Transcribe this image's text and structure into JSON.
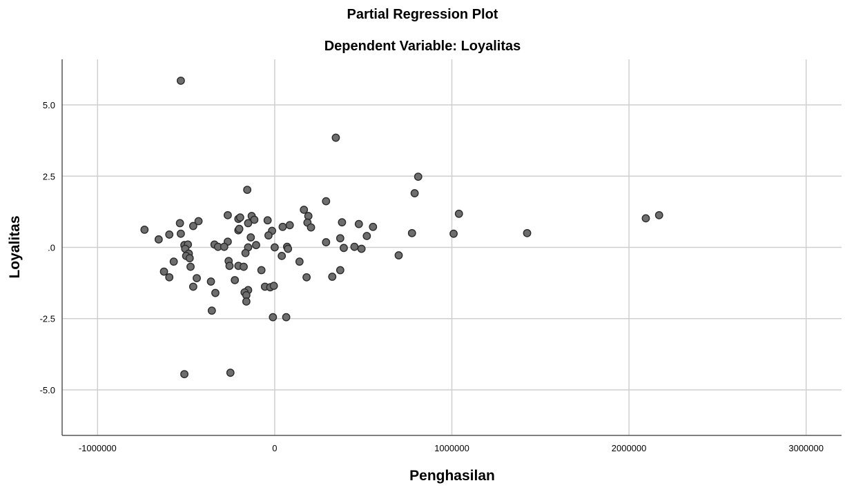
{
  "chart_data": {
    "type": "scatter",
    "title": "Partial Regression Plot",
    "subtitle": "Dependent Variable: Loyalitas",
    "xlabel": "Penghasilan",
    "ylabel": "Loyalitas",
    "xlim": [
      -1200000,
      3200000
    ],
    "ylim": [
      -6.6,
      6.6
    ],
    "x_ticks": [
      -1000000,
      0,
      1000000,
      2000000,
      3000000
    ],
    "x_tick_labels": [
      "-1000000",
      "0",
      "1000000",
      "2000000",
      "3000000"
    ],
    "y_ticks": [
      5.0,
      2.5,
      0,
      -2.5,
      -5.0
    ],
    "y_tick_labels": [
      "5.0",
      "2.5",
      ".0",
      "-2.5",
      "-5.0"
    ],
    "grid": true,
    "legend": "none",
    "colors": {
      "marker_fill": "#6e6e6e",
      "marker_edge": "#2b2b2b",
      "grid": "#cfcfcf",
      "axis": "#555555"
    },
    "points": [
      {
        "x": -530000,
        "y": 5.85
      },
      {
        "x": 345000,
        "y": 3.85
      },
      {
        "x": -155000,
        "y": 2.02
      },
      {
        "x": 810000,
        "y": 2.48
      },
      {
        "x": 790000,
        "y": 1.9
      },
      {
        "x": 290000,
        "y": 1.62
      },
      {
        "x": 165000,
        "y": 1.32
      },
      {
        "x": 1040000,
        "y": 1.18
      },
      {
        "x": 2095000,
        "y": 1.02
      },
      {
        "x": 2170000,
        "y": 1.13
      },
      {
        "x": -265000,
        "y": 1.13
      },
      {
        "x": -130000,
        "y": 1.1
      },
      {
        "x": -205000,
        "y": 1.0
      },
      {
        "x": -195000,
        "y": 1.05
      },
      {
        "x": -115000,
        "y": 0.97
      },
      {
        "x": -40000,
        "y": 0.95
      },
      {
        "x": 190000,
        "y": 1.1
      },
      {
        "x": -430000,
        "y": 0.92
      },
      {
        "x": -535000,
        "y": 0.85
      },
      {
        "x": -150000,
        "y": 0.85
      },
      {
        "x": 380000,
        "y": 0.88
      },
      {
        "x": 475000,
        "y": 0.82
      },
      {
        "x": 185000,
        "y": 0.87
      },
      {
        "x": 85000,
        "y": 0.78
      },
      {
        "x": 45000,
        "y": 0.72
      },
      {
        "x": 555000,
        "y": 0.72
      },
      {
        "x": 205000,
        "y": 0.7
      },
      {
        "x": -460000,
        "y": 0.75
      },
      {
        "x": -205000,
        "y": 0.6
      },
      {
        "x": -735000,
        "y": 0.62
      },
      {
        "x": -15000,
        "y": 0.58
      },
      {
        "x": -200000,
        "y": 0.65
      },
      {
        "x": 775000,
        "y": 0.5
      },
      {
        "x": 1010000,
        "y": 0.48
      },
      {
        "x": 1425000,
        "y": 0.5
      },
      {
        "x": -530000,
        "y": 0.48
      },
      {
        "x": -595000,
        "y": 0.45
      },
      {
        "x": -35000,
        "y": 0.42
      },
      {
        "x": 520000,
        "y": 0.4
      },
      {
        "x": -135000,
        "y": 0.35
      },
      {
        "x": 370000,
        "y": 0.32
      },
      {
        "x": -655000,
        "y": 0.28
      },
      {
        "x": 290000,
        "y": 0.18
      },
      {
        "x": -265000,
        "y": 0.2
      },
      {
        "x": -340000,
        "y": 0.1
      },
      {
        "x": -105000,
        "y": 0.08
      },
      {
        "x": -510000,
        "y": 0.08
      },
      {
        "x": -490000,
        "y": 0.1
      },
      {
        "x": -320000,
        "y": 0.02
      },
      {
        "x": -285000,
        "y": 0.02
      },
      {
        "x": -150000,
        "y": 0.0
      },
      {
        "x": 0,
        "y": 0.0
      },
      {
        "x": 70000,
        "y": 0.02
      },
      {
        "x": 450000,
        "y": 0.02
      },
      {
        "x": 75000,
        "y": -0.05
      },
      {
        "x": -505000,
        "y": -0.05
      },
      {
        "x": 390000,
        "y": -0.02
      },
      {
        "x": 490000,
        "y": -0.05
      },
      {
        "x": -485000,
        "y": -0.22
      },
      {
        "x": -165000,
        "y": -0.2
      },
      {
        "x": -500000,
        "y": -0.3
      },
      {
        "x": 40000,
        "y": -0.3
      },
      {
        "x": 700000,
        "y": -0.28
      },
      {
        "x": -480000,
        "y": -0.38
      },
      {
        "x": -570000,
        "y": -0.5
      },
      {
        "x": -260000,
        "y": -0.48
      },
      {
        "x": 140000,
        "y": -0.5
      },
      {
        "x": -475000,
        "y": -0.68
      },
      {
        "x": -255000,
        "y": -0.65
      },
      {
        "x": -205000,
        "y": -0.65
      },
      {
        "x": -175000,
        "y": -0.68
      },
      {
        "x": -75000,
        "y": -0.8
      },
      {
        "x": 370000,
        "y": -0.8
      },
      {
        "x": -625000,
        "y": -0.85
      },
      {
        "x": -595000,
        "y": -1.05
      },
      {
        "x": -440000,
        "y": -1.08
      },
      {
        "x": 180000,
        "y": -1.05
      },
      {
        "x": 325000,
        "y": -1.03
      },
      {
        "x": -360000,
        "y": -1.2
      },
      {
        "x": -225000,
        "y": -1.15
      },
      {
        "x": -460000,
        "y": -1.38
      },
      {
        "x": -55000,
        "y": -1.38
      },
      {
        "x": -25000,
        "y": -1.4
      },
      {
        "x": -5000,
        "y": -1.35
      },
      {
        "x": -150000,
        "y": -1.5
      },
      {
        "x": -335000,
        "y": -1.6
      },
      {
        "x": -170000,
        "y": -1.58
      },
      {
        "x": -160000,
        "y": -1.68
      },
      {
        "x": -160000,
        "y": -1.9
      },
      {
        "x": -355000,
        "y": -2.22
      },
      {
        "x": -10000,
        "y": -2.45
      },
      {
        "x": 65000,
        "y": -2.45
      },
      {
        "x": -510000,
        "y": -4.45
      },
      {
        "x": -250000,
        "y": -4.4
      }
    ]
  }
}
